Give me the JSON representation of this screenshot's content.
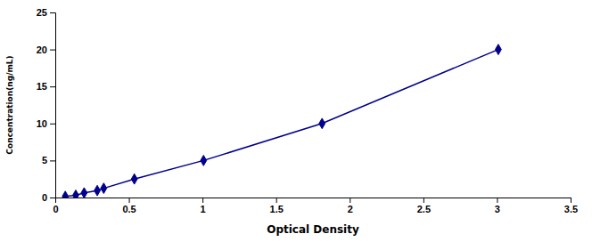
{
  "chart_data": {
    "type": "line",
    "xlabel": "Optical Density",
    "ylabel": "Concentration(ng/mL)",
    "x": [
      0.068,
      0.139,
      0.196,
      0.285,
      0.329,
      0.537,
      1.007,
      1.812,
      3.009
    ],
    "values": [
      0.156,
      0.312,
      0.625,
      0.938,
      1.25,
      2.5,
      5.0,
      10.0,
      20.0
    ],
    "color": "#00008B",
    "marker": "diamond",
    "xlim": [
      0,
      3.5
    ],
    "ylim": [
      0,
      25
    ],
    "xticks": [
      0,
      0.5,
      1,
      1.5,
      2,
      2.5,
      3,
      3.5
    ],
    "yticks": [
      0,
      5,
      10,
      15,
      20,
      25
    ]
  }
}
